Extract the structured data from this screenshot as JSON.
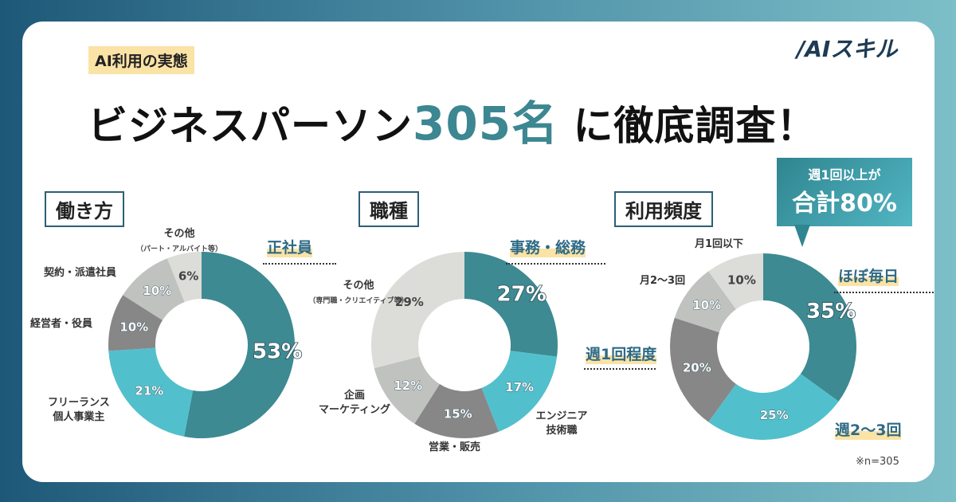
{
  "tag": "AI利用の実態",
  "headline": {
    "pre": "ビジネスパーソン",
    "num": "305名",
    "post": "に徹底調査！"
  },
  "logo": "/AIスキル",
  "callout": {
    "line1": "週1回以上が",
    "line2": "合計80%"
  },
  "note": "※n=305",
  "colors": {
    "teal_dark": "#3d8a92",
    "teal_light": "#52bfcc",
    "gray_dark": "#878787",
    "gray_mid": "#c0c2bf",
    "gray_light": "#dcdcd8"
  },
  "chart_data": [
    {
      "type": "pie",
      "donut": true,
      "title": "働き方",
      "categories": [
        "正社員",
        "フリーランス 個人事業主",
        "経営者・役員",
        "契約・派遣社員",
        "その他（パート・アルバイト等）"
      ],
      "values": [
        53,
        21,
        10,
        10,
        6
      ],
      "labels": [
        "53%",
        "21%",
        "10%",
        "10%",
        "6%"
      ],
      "colors": [
        "#3d8a92",
        "#52bfcc",
        "#878787",
        "#c0c2bf",
        "#dcdcd8"
      ],
      "label_text": {
        "a": "正社員",
        "b1": "フリーランス",
        "b2": "個人事業主",
        "c": "経営者・役員",
        "d": "契約・派遣社員",
        "e": "その他",
        "e_sub": "（パート・アルバイト等）"
      }
    },
    {
      "type": "pie",
      "donut": true,
      "title": "職種",
      "categories": [
        "事務・総務",
        "エンジニア 技術職",
        "営業・販売",
        "企画 マーケティング",
        "その他（専門職・クリエイティブ等）"
      ],
      "values": [
        27,
        17,
        15,
        12,
        29
      ],
      "labels": [
        "27%",
        "17%",
        "15%",
        "12%",
        "29%"
      ],
      "colors": [
        "#3d8a92",
        "#52bfcc",
        "#878787",
        "#c0c2bf",
        "#dcdcd8"
      ],
      "label_text": {
        "a": "事務・総務",
        "b1": "エンジニア",
        "b2": "技術職",
        "c": "営業・販売",
        "d1": "企画",
        "d2": "マーケティング",
        "e": "その他",
        "e_sub": "（専門職・クリエイティブ等）"
      }
    },
    {
      "type": "pie",
      "donut": true,
      "title": "利用頻度",
      "categories": [
        "ほぼ毎日",
        "週2〜3回",
        "週1回程度",
        "月2〜3回",
        "月1回以下"
      ],
      "values": [
        35,
        25,
        20,
        10,
        10
      ],
      "labels": [
        "35%",
        "25%",
        "20%",
        "10%",
        "10%"
      ],
      "colors": [
        "#3d8a92",
        "#52bfcc",
        "#878787",
        "#c0c2bf",
        "#dcdcd8"
      ],
      "label_text": {
        "a": "ほぼ毎日",
        "b": "週2〜3回",
        "c": "週1回程度",
        "d": "月2〜3回",
        "e": "月1回以下"
      }
    }
  ]
}
